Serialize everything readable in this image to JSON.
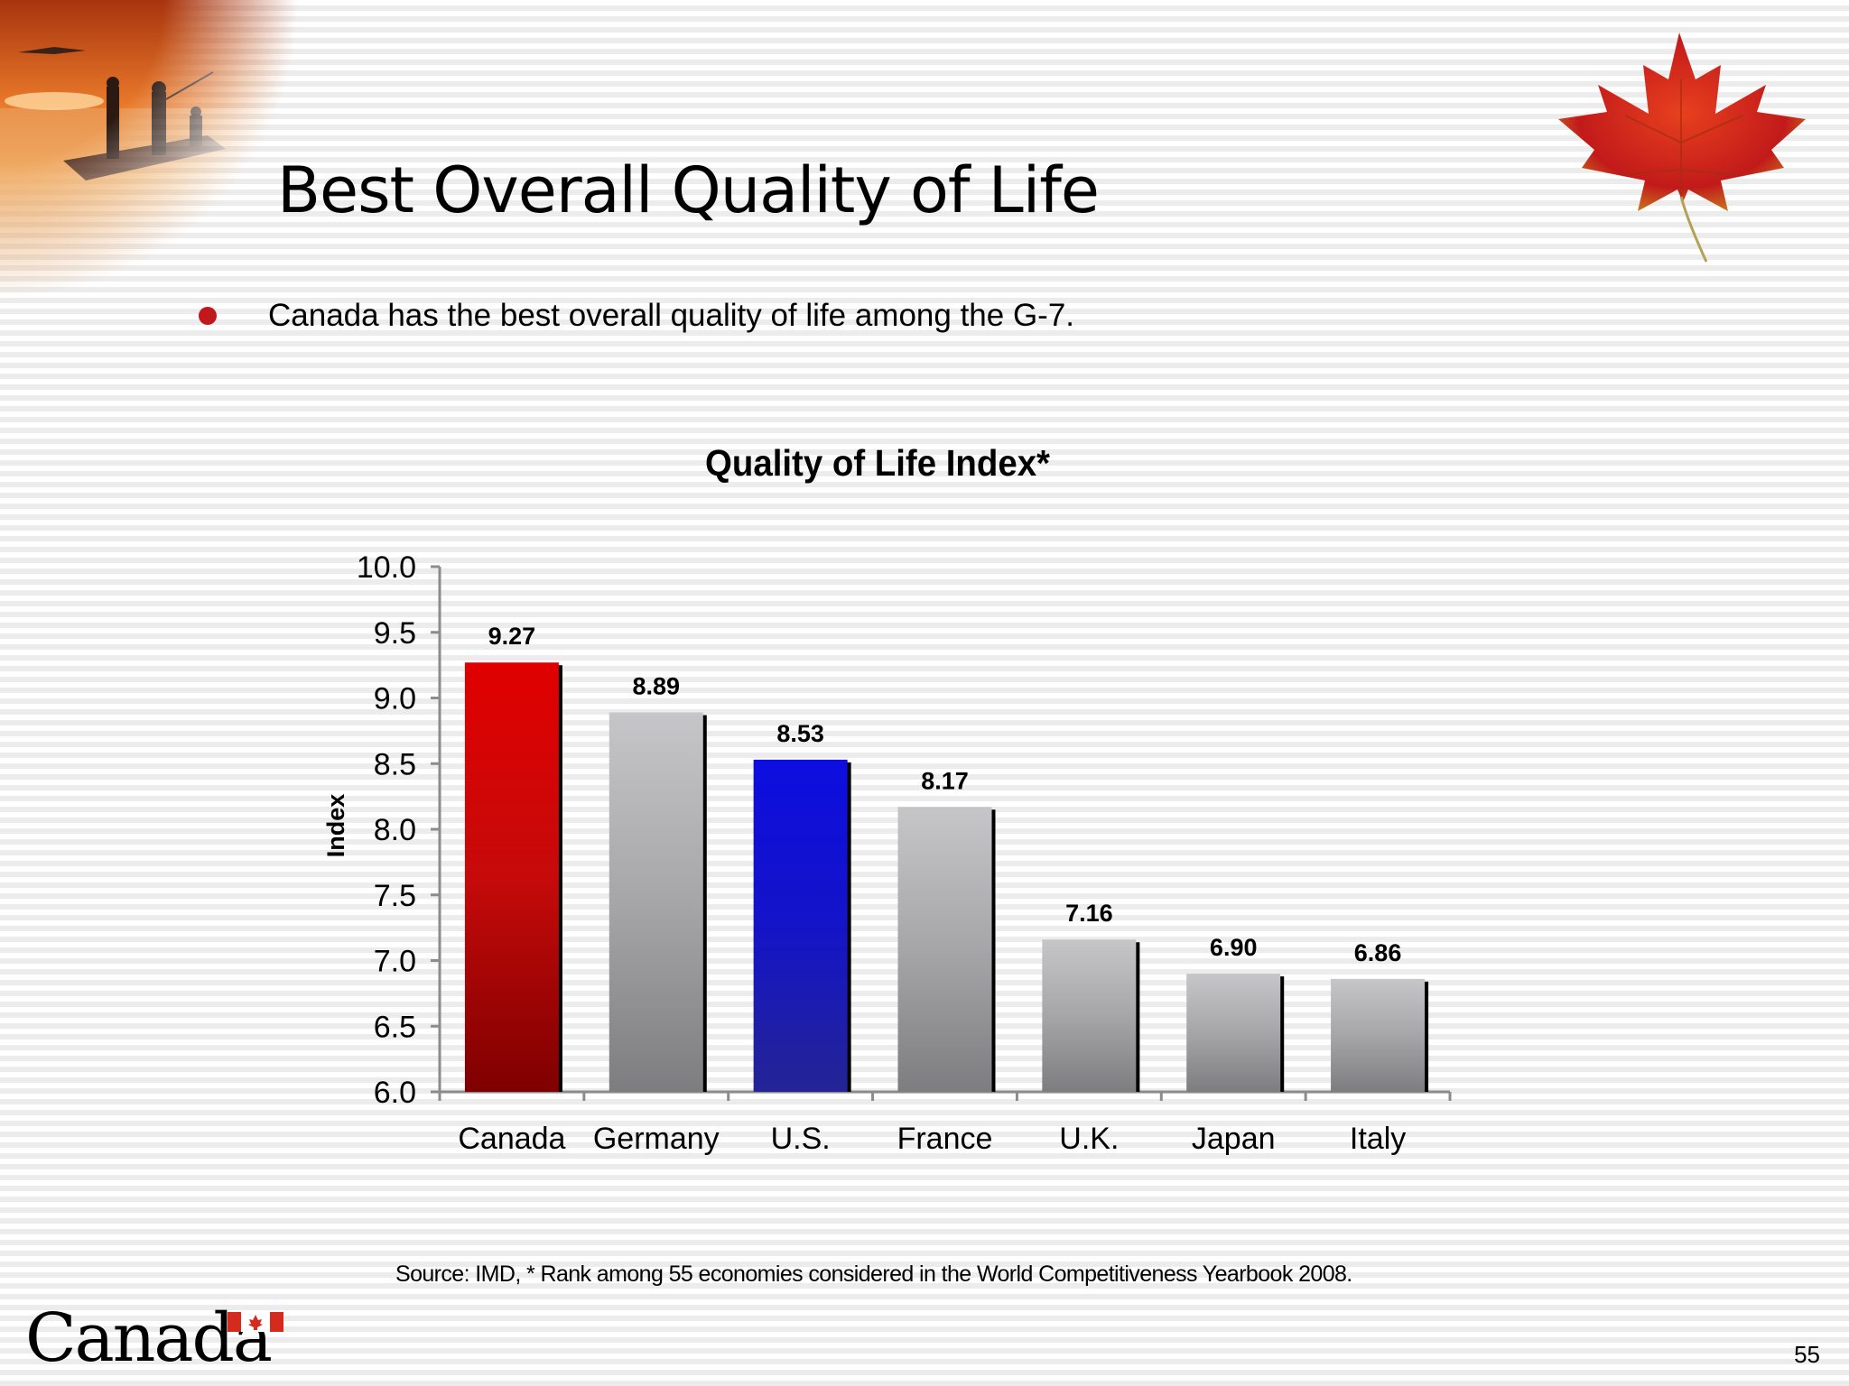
{
  "slide": {
    "title": "Best Overall Quality of Life",
    "bullet": "Canada has the best overall quality of life among the G-7.",
    "source": "Source: IMD,  * Rank among 55 economies considered in the World Competitiveness Yearbook 2008.",
    "wordmark": "Canada",
    "page_number": "55"
  },
  "colors": {
    "bullet": "#c0181d",
    "canada_bar": "#c60a0a",
    "us_bar": "#1414c8",
    "other_bars": "#a6a6a6"
  },
  "icons": [
    "lake-dock-photo",
    "maple-leaf-icon",
    "canada-flag-icon"
  ],
  "chart_data": {
    "type": "bar",
    "title": "Quality of Life Index*",
    "xlabel": "",
    "ylabel": "Index",
    "categories": [
      "Canada",
      "Germany",
      "U.S.",
      "France",
      "U.K.",
      "Japan",
      "Italy"
    ],
    "values": [
      9.27,
      8.89,
      8.53,
      8.17,
      7.16,
      6.9,
      6.86
    ],
    "value_labels": [
      "9.27",
      "8.89",
      "8.53",
      "8.17",
      "7.16",
      "6.90",
      "6.86"
    ],
    "ylim": [
      6.0,
      10.0
    ],
    "yticks": [
      "6.0",
      "6.5",
      "7.0",
      "7.5",
      "8.0",
      "8.5",
      "9.0",
      "9.5",
      "10.0"
    ],
    "bar_colors": [
      "red",
      "gray",
      "blue",
      "gray",
      "gray",
      "gray",
      "gray"
    ],
    "grid": false,
    "legend": "none"
  }
}
